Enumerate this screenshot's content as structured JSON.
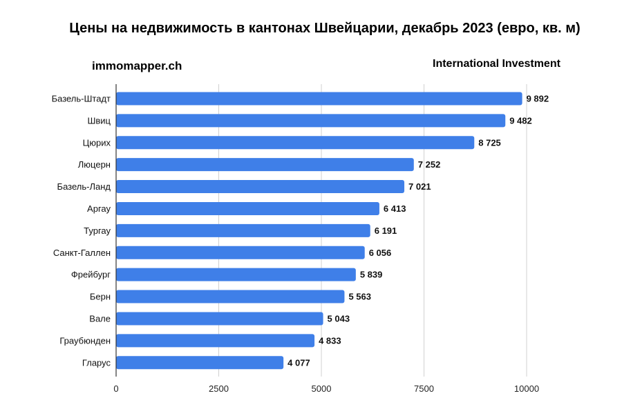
{
  "header": {
    "title": "Цены на недвижимость в кантонах Швейцарии, декабрь 2023 (евро, кв. м)",
    "source_left": "immomapper.ch",
    "source_right": "International Investment"
  },
  "chart_data": {
    "type": "bar",
    "orientation": "horizontal",
    "categories": [
      "Базель-Штадт",
      "Швиц",
      "Цюрих",
      "Люцерн",
      "Базель-Ланд",
      "Аргау",
      "Тургау",
      "Санкт-Галлен",
      "Фрейбург",
      "Берн",
      "Вале",
      "Граубюнден",
      "Гларус"
    ],
    "values": [
      9892,
      9482,
      8725,
      7252,
      7021,
      6413,
      6191,
      6056,
      5839,
      5563,
      5043,
      4833,
      4077
    ],
    "value_labels": [
      "9 892",
      "9 482",
      "8 725",
      "7 252",
      "7 021",
      "6 413",
      "6 191",
      "6 056",
      "5 839",
      "5 563",
      "5 043",
      "4 833",
      "4 077"
    ],
    "title": "Цены на недвижимость в кантонах Швейцарии, декабрь 2023 (евро, кв. м)",
    "xlabel": "",
    "ylabel": "",
    "xlim": [
      0,
      10000
    ],
    "xticks": [
      0,
      2500,
      5000,
      7500,
      10000
    ],
    "xtick_labels": [
      "0",
      "2500",
      "5000",
      "7500",
      "10000"
    ],
    "grid": "vertical",
    "legend": "none",
    "bar_color": "#3f7fe8"
  }
}
